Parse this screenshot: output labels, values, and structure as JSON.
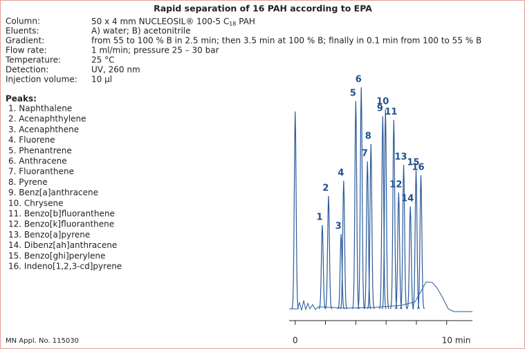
{
  "title": "Rapid separation of 16 PAH according to EPA",
  "conditions": [
    {
      "label": "Column:",
      "value": {
        "text": "50 x 4 mm NUCLEOSIL® 100-5 C",
        "subscript": "18",
        "suffix": " PAH"
      }
    },
    {
      "label": "Eluents:",
      "value": "A) water; B) acetonitrile"
    },
    {
      "label": "Gradient:",
      "value": "from 55 to 100 % B in 2.5 min; then 3.5 min at 100 % B; finally in 0.1 min from 100 to 55 % B"
    },
    {
      "label": "Flow rate:",
      "value": "1 ml/min; pressure 25 – 30 bar"
    },
    {
      "label": "Temperature:",
      "value": "25 °C"
    },
    {
      "label": "Detection:",
      "value": "UV, 260 nm"
    },
    {
      "label": "Injection volume:",
      "value": "10 µl"
    }
  ],
  "peaks_heading": "Peaks:",
  "peaks": [
    "1. Naphthalene",
    "2. Acenaphthylene",
    "3. Acenaphthene",
    "4. Fluorene",
    "5. Phenantrene",
    "6. Anthracene",
    "7. Fluoranthene",
    "8. Pyrene",
    "9. Benz[a]anthracene",
    "10. Chrysene",
    "11. Benzo[b]fluoranthene",
    "12. Benzo[k]fluoranthene",
    "13. Benzo[a]pyrene",
    "14. Dibenz[ah]anthracene",
    "15. Benzo[ghi]perylene",
    "16. Indeno[1,2,3-cd]pyrene"
  ],
  "footer": "MN Appl. No. 115030",
  "chart_data": {
    "type": "line",
    "color": "#2a5a9a",
    "label_color": "#1f4f8f",
    "x": [
      0,
      1.79,
      2.2,
      3.03,
      3.2,
      4.0,
      4.36,
      4.77,
      5.0,
      5.78,
      5.96,
      6.51,
      6.83,
      7.16,
      7.6,
      7.98,
      8.3
    ],
    "values": [
      285,
      121,
      163,
      108,
      185,
      300,
      320,
      213,
      238,
      278,
      288,
      273,
      168,
      208,
      148,
      200,
      193
    ],
    "labels": [
      null,
      1,
      2,
      3,
      4,
      5,
      6,
      7,
      8,
      9,
      10,
      11,
      12,
      13,
      14,
      15,
      16
    ],
    "xlim": [
      -0.4,
      11.7
    ],
    "ylim": [
      0,
      330
    ],
    "xticks": [
      0,
      2,
      4,
      6,
      8,
      {
        "value": 10,
        "label": "10 min"
      }
    ]
  }
}
